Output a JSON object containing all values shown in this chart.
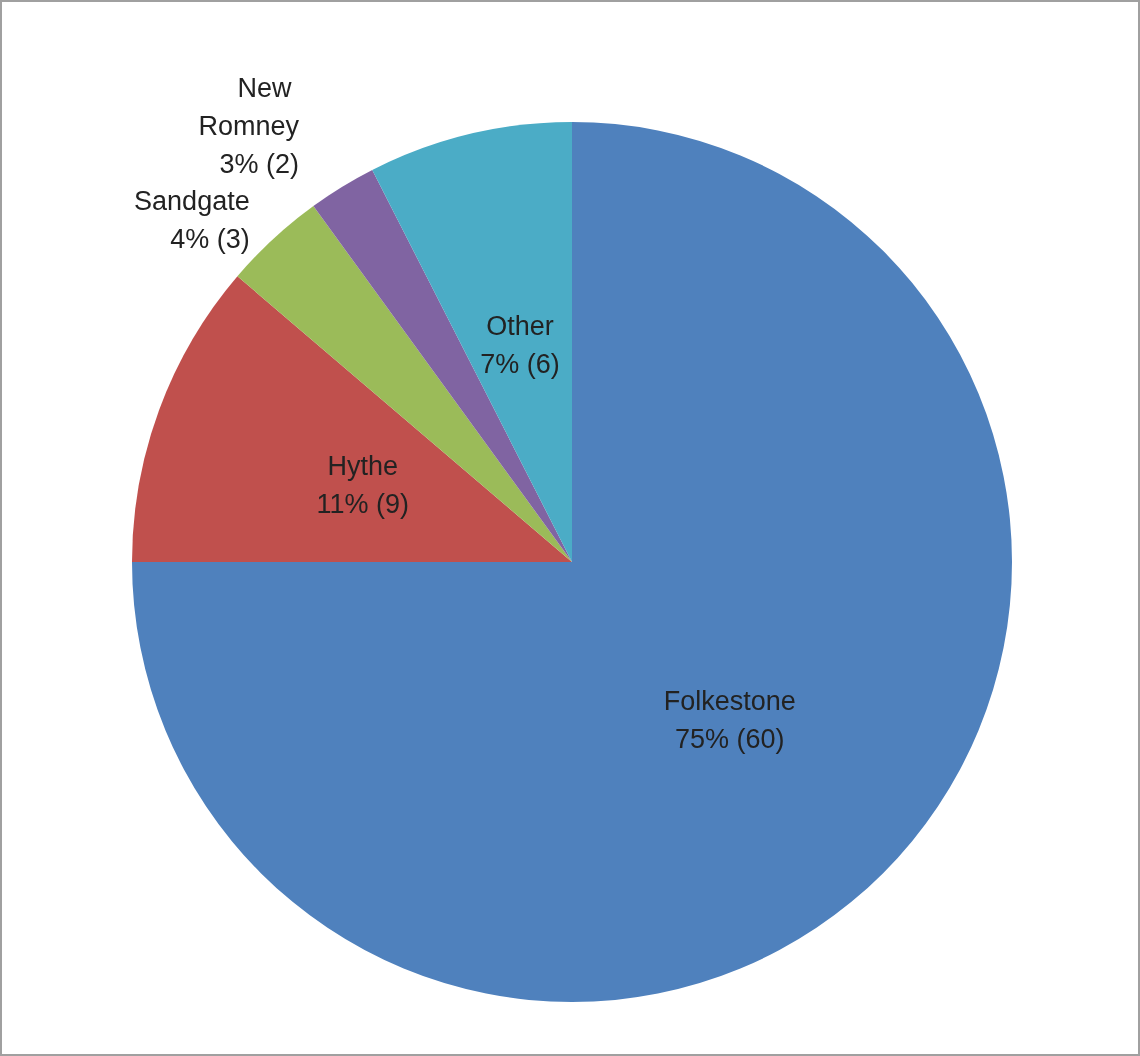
{
  "chart_data": {
    "type": "pie",
    "categories": [
      "Folkestone",
      "Hythe",
      "Sandgate",
      "New Romney",
      "Other"
    ],
    "values": [
      60,
      9,
      3,
      2,
      6
    ],
    "value_labels": [
      "75% (60)",
      "11% (9)",
      "4% (3)",
      "3% (2)",
      "7% (6)"
    ],
    "colors": [
      "#4f81bd",
      "#c0504d",
      "#9bbb59",
      "#8064a2",
      "#4bacc6"
    ],
    "legend": false
  }
}
